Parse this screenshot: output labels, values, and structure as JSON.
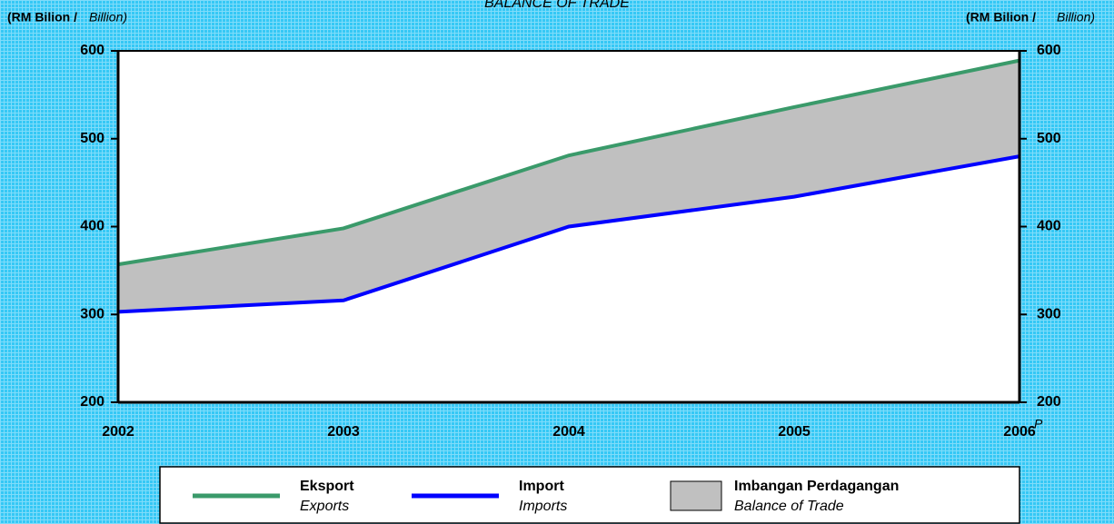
{
  "chart_data": {
    "type": "area-line",
    "title": "BALANCE OF TRADE",
    "y_label": "(RM Bilion /",
    "y_label_en": "Billion)",
    "y2_label": "(RM Bilion /",
    "y2_label_en": "Billion)",
    "x": [
      "2002",
      "2003",
      "2004",
      "2005",
      "2006"
    ],
    "x_annotation": "P",
    "series": [
      {
        "name": "Eksport",
        "name_en": "Exports",
        "color": "#3a9a6a",
        "values": [
          357,
          398,
          481,
          536,
          589
        ]
      },
      {
        "name": "Import",
        "name_en": "Imports",
        "color": "#0000ff",
        "values": [
          303,
          316,
          400,
          434,
          480
        ]
      }
    ],
    "area": {
      "name": "Imbangan Perdagangan",
      "name_en": "Balance of Trade",
      "color": "#c0c0c0"
    },
    "ylim": [
      200,
      600
    ],
    "yticks": [
      200,
      300,
      400,
      500,
      600
    ],
    "y2lim": [
      200,
      600
    ],
    "y2ticks": [
      200,
      300,
      400,
      500,
      600
    ]
  }
}
